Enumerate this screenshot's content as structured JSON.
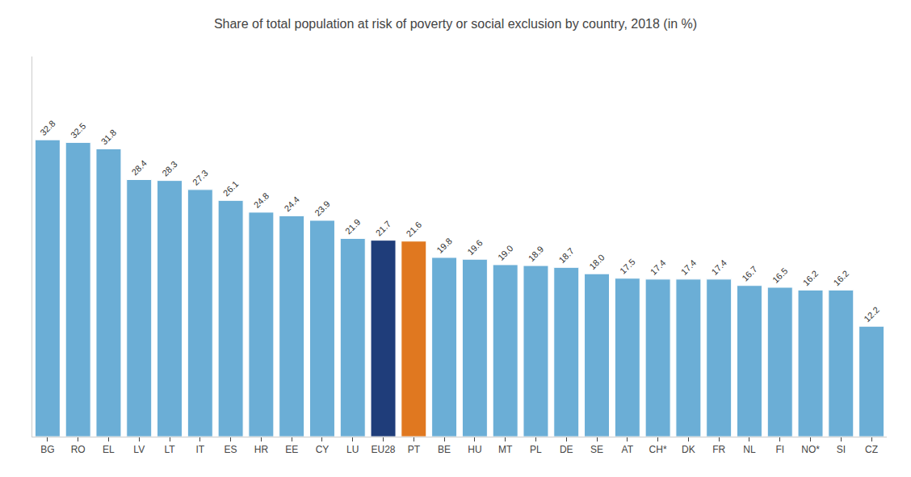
{
  "chart_data": {
    "type": "bar",
    "title": "Share of total population at risk of poverty or social exclusion by country, 2018 (in %)",
    "categories": [
      "BG",
      "RO",
      "EL",
      "LV",
      "LT",
      "IT",
      "ES",
      "HR",
      "EE",
      "CY",
      "LU",
      "EU28",
      "PT",
      "BE",
      "HU",
      "MT",
      "PL",
      "DE",
      "SE",
      "AT",
      "CH*",
      "DK",
      "FR",
      "NL",
      "FI",
      "NO*",
      "SI",
      "CZ"
    ],
    "values": [
      32.8,
      32.5,
      31.8,
      28.4,
      28.3,
      27.3,
      26.1,
      24.8,
      24.4,
      23.9,
      21.9,
      21.7,
      21.6,
      19.8,
      19.6,
      19.0,
      18.9,
      18.7,
      18.0,
      17.5,
      17.4,
      17.4,
      17.4,
      16.7,
      16.5,
      16.2,
      16.2,
      12.2
    ],
    "value_labels": [
      "32.8",
      "32.5",
      "31.8",
      "28.4",
      "28.3",
      "27.3",
      "26.1",
      "24.8",
      "24.4",
      "23.9",
      "21.9",
      "21.7",
      "21.6",
      "19.8",
      "19.6",
      "19.0",
      "18.9",
      "18.7",
      "18.0",
      "17.5",
      "17.4",
      "17.4",
      "17.4",
      "16.7",
      "16.5",
      "16.2",
      "16.2",
      "12.2"
    ],
    "colors": [
      "#6baed6",
      "#6baed6",
      "#6baed6",
      "#6baed6",
      "#6baed6",
      "#6baed6",
      "#6baed6",
      "#6baed6",
      "#6baed6",
      "#6baed6",
      "#6baed6",
      "#1f3d7a",
      "#e07820",
      "#6baed6",
      "#6baed6",
      "#6baed6",
      "#6baed6",
      "#6baed6",
      "#6baed6",
      "#6baed6",
      "#6baed6",
      "#6baed6",
      "#6baed6",
      "#6baed6",
      "#6baed6",
      "#6baed6",
      "#6baed6",
      "#6baed6"
    ],
    "ylim": [
      0,
      42
    ],
    "grid": false,
    "data_labels": true,
    "tick_labels": "x"
  }
}
